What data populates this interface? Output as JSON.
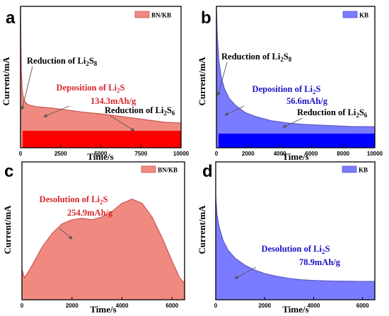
{
  "colors": {
    "bn_fill": "#f08a80",
    "bn_edge": "#c9564f",
    "bn_base": "#ff0000",
    "kb_fill": "#7b7bff",
    "kb_edge": "#5a5ac8",
    "kb_base": "#0000ff",
    "red_text": "#d8262a",
    "blue_text": "#1a12c8",
    "axis": "#000000"
  },
  "chart_data": [
    {
      "panel": "a",
      "type": "area",
      "ylabel": "Current/mA",
      "xlabel": "Time/s",
      "xlim": [
        0,
        10000
      ],
      "xticks": [
        "0",
        "2500",
        "5000",
        "7500",
        "10000"
      ],
      "legend": "BN/KB",
      "legend_position": "top-right",
      "color_key": "bn_fill",
      "has_base_band": true,
      "series": [
        {
          "x": [
            0,
            20,
            50,
            100,
            150,
            250,
            400,
            600,
            1000,
            2000,
            3000,
            4000,
            5000,
            6000,
            7000,
            8000,
            9000,
            10000
          ],
          "y": [
            1.0,
            0.78,
            0.55,
            0.42,
            0.37,
            0.33,
            0.31,
            0.3,
            0.29,
            0.28,
            0.265,
            0.25,
            0.24,
            0.225,
            0.21,
            0.195,
            0.18,
            0.175
          ]
        }
      ],
      "base_level": 0.12,
      "annotations": [
        {
          "text": "Reduction of Li₂S₈",
          "color": "black",
          "anchor_x": 50
        },
        {
          "text": "Deposition of Li₂S",
          "color": "red"
        },
        {
          "text": "134.3mAh/g",
          "color": "red"
        },
        {
          "text": "Reduction of Li₂S₆",
          "color": "black",
          "anchor_x": 8200
        }
      ]
    },
    {
      "panel": "b",
      "type": "area",
      "ylabel": "Current/mA",
      "xlabel": "Time/s",
      "xlim": [
        0,
        10000
      ],
      "xticks": [
        "0",
        "2000",
        "4000",
        "6000",
        "8000",
        "10000"
      ],
      "legend": "KB",
      "legend_position": "top-right",
      "color_key": "kb_fill",
      "has_base_band": true,
      "series": [
        {
          "x": [
            0,
            50,
            150,
            300,
            500,
            800,
            1200,
            1800,
            2500,
            3500,
            4500,
            5500,
            6500,
            7500,
            8500,
            10000
          ],
          "y": [
            1.0,
            0.8,
            0.62,
            0.5,
            0.42,
            0.35,
            0.3,
            0.25,
            0.22,
            0.19,
            0.175,
            0.165,
            0.16,
            0.155,
            0.15,
            0.148
          ]
        }
      ],
      "base_level": 0.1,
      "annotations": [
        {
          "text": "Reduction of Li₂S₈",
          "color": "black",
          "anchor_x": 50
        },
        {
          "text": "Deposition of Li₂S",
          "color": "blue"
        },
        {
          "text": "56.6mAh/g",
          "color": "blue"
        },
        {
          "text": "Reduction of Li₂S₆",
          "color": "black",
          "anchor_x": 5800
        }
      ]
    },
    {
      "panel": "c",
      "type": "area",
      "ylabel": "Current/mA",
      "xlabel": "Time/s",
      "xlim": [
        0,
        6500
      ],
      "xticks": [
        "0",
        "2000",
        "4000",
        "6000"
      ],
      "legend": "BN/KB",
      "legend_position": "top-right",
      "color_key": "bn_fill",
      "has_base_band": false,
      "series": [
        {
          "x": [
            0,
            100,
            250,
            500,
            800,
            1200,
            1600,
            2000,
            2400,
            2800,
            3200,
            3600,
            4000,
            4400,
            4800,
            5200,
            5600,
            6000,
            6300,
            6500
          ],
          "y": [
            0.22,
            0.16,
            0.2,
            0.28,
            0.38,
            0.48,
            0.55,
            0.58,
            0.59,
            0.58,
            0.6,
            0.64,
            0.7,
            0.73,
            0.7,
            0.6,
            0.45,
            0.28,
            0.16,
            0.12
          ]
        }
      ],
      "annotations": [
        {
          "text": "Desolution of Li₂S",
          "color": "red",
          "anchor_x": 1800
        },
        {
          "text": "254.9mAh/g",
          "color": "red"
        }
      ]
    },
    {
      "panel": "d",
      "type": "area",
      "ylabel": "Current/mA",
      "xlabel": "Time/s",
      "xlim": [
        0,
        6500
      ],
      "xticks": [
        "0",
        "2000",
        "4000",
        "6000"
      ],
      "legend": "KB",
      "legend_position": "top-right",
      "color_key": "kb_fill",
      "has_base_band": false,
      "series": [
        {
          "x": [
            0,
            50,
            150,
            300,
            500,
            800,
            1200,
            1600,
            2000,
            2500,
            3000,
            3500,
            4000,
            4500,
            5000,
            5500,
            6000,
            6500
          ],
          "y": [
            0.75,
            0.62,
            0.52,
            0.43,
            0.36,
            0.3,
            0.25,
            0.215,
            0.19,
            0.17,
            0.155,
            0.145,
            0.14,
            0.137,
            0.135,
            0.134,
            0.133,
            0.133
          ]
        }
      ],
      "annotations": [
        {
          "text": "Desolution of Li₂S",
          "color": "blue",
          "anchor_x": 800
        },
        {
          "text": "78.9mAh/g",
          "color": "blue"
        }
      ]
    }
  ]
}
